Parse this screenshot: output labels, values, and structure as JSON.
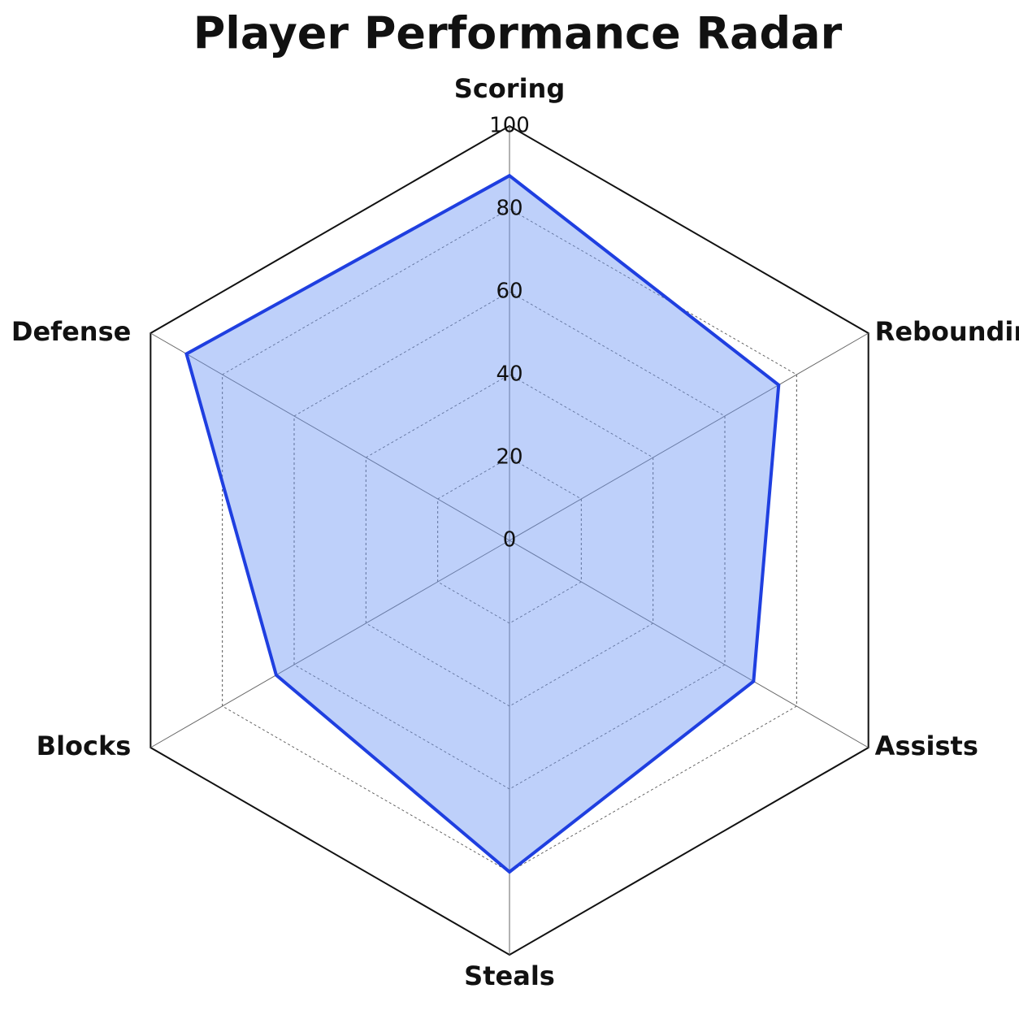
{
  "chart_data": {
    "type": "radar",
    "title": "Player Performance Radar",
    "categories": [
      "Scoring",
      "Rebounding",
      "Assists",
      "Steals",
      "Blocks",
      "Defense"
    ],
    "series": [
      {
        "color": "#1f3fe0",
        "values": [
          88,
          75,
          68,
          80,
          65,
          90
        ]
      }
    ],
    "rlim": [
      0,
      100
    ],
    "rticks": [
      0,
      20,
      40,
      60,
      80,
      100
    ],
    "grid": true
  }
}
